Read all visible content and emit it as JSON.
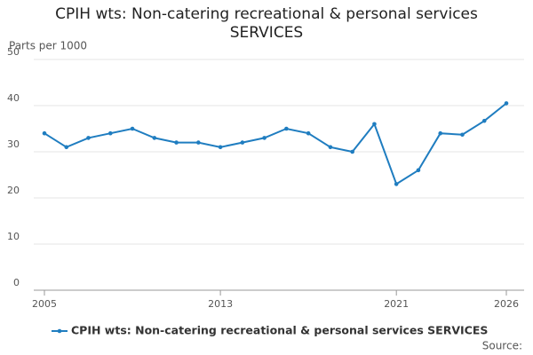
{
  "chart_data": {
    "type": "line",
    "title": "CPIH wts: Non-catering recreational & personal services SERVICES",
    "y_label": "Parts per 1000",
    "source": "Source:",
    "x": [
      2005,
      2006,
      2007,
      2008,
      2009,
      2010,
      2011,
      2012,
      2013,
      2014,
      2015,
      2016,
      2017,
      2018,
      2019,
      2020,
      2021,
      2022,
      2023,
      2024,
      2025,
      2026
    ],
    "series": [
      {
        "name": "CPIH wts: Non-catering recreational & personal services SERVICES",
        "color": "#1f7dc0",
        "values": [
          34,
          31,
          33,
          34,
          35,
          33,
          32,
          32,
          31,
          32,
          33,
          35,
          34,
          31,
          30,
          36,
          23,
          26,
          34,
          33.7,
          36.7,
          40.5
        ]
      }
    ],
    "xlim": [
      2005,
      2026
    ],
    "xticks": [
      2005,
      2013,
      2021,
      2026
    ],
    "ylim": [
      0,
      50
    ],
    "yticks": [
      0,
      10,
      20,
      30,
      40,
      50
    ],
    "grid": true
  }
}
